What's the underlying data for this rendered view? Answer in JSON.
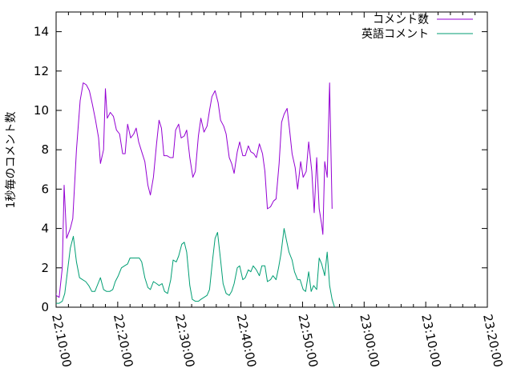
{
  "chart_data": {
    "type": "line",
    "title": "",
    "xlabel": "",
    "ylabel": "1秒毎のコメント数",
    "x_range_minutes": [
      0,
      70
    ],
    "x_ticks": [
      {
        "m": 0,
        "label": "22:10:00"
      },
      {
        "m": 10,
        "label": "22:20:00"
      },
      {
        "m": 20,
        "label": "22:30:00"
      },
      {
        "m": 30,
        "label": "22:40:00"
      },
      {
        "m": 40,
        "label": "22:50:00"
      },
      {
        "m": 50,
        "label": "23:00:00"
      },
      {
        "m": 60,
        "label": "23:10:00"
      },
      {
        "m": 70,
        "label": "23:20:00"
      }
    ],
    "ylim": [
      0,
      15
    ],
    "y_ticks": [
      0,
      2,
      4,
      6,
      8,
      10,
      12,
      14
    ],
    "grid": false,
    "legend_position": "top-right",
    "series": [
      {
        "name": "コメント数",
        "color": "#9400d3",
        "points": [
          [
            -1.0,
            2.0
          ],
          [
            -0.5,
            2.0
          ],
          [
            0.0,
            0.6
          ],
          [
            0.5,
            0.5
          ],
          [
            1.0,
            2.0
          ],
          [
            1.3,
            6.2
          ],
          [
            1.7,
            3.5
          ],
          [
            2.3,
            4.0
          ],
          [
            2.7,
            4.5
          ],
          [
            3.3,
            8.0
          ],
          [
            3.9,
            10.5
          ],
          [
            4.4,
            11.4
          ],
          [
            4.9,
            11.3
          ],
          [
            5.4,
            11.0
          ],
          [
            5.9,
            10.3
          ],
          [
            6.4,
            9.5
          ],
          [
            6.9,
            8.6
          ],
          [
            7.2,
            7.3
          ],
          [
            7.7,
            8.0
          ],
          [
            8.0,
            11.1
          ],
          [
            8.3,
            9.6
          ],
          [
            8.8,
            9.9
          ],
          [
            9.3,
            9.7
          ],
          [
            9.8,
            9.0
          ],
          [
            10.3,
            8.8
          ],
          [
            10.8,
            7.8
          ],
          [
            11.2,
            7.8
          ],
          [
            11.6,
            9.3
          ],
          [
            12.1,
            8.6
          ],
          [
            12.6,
            8.8
          ],
          [
            13.0,
            9.1
          ],
          [
            13.4,
            8.4
          ],
          [
            13.9,
            7.9
          ],
          [
            14.4,
            7.4
          ],
          [
            14.9,
            6.2
          ],
          [
            15.3,
            5.7
          ],
          [
            15.8,
            6.6
          ],
          [
            16.3,
            8.3
          ],
          [
            16.7,
            9.5
          ],
          [
            17.1,
            9.1
          ],
          [
            17.5,
            7.7
          ],
          [
            18.0,
            7.7
          ],
          [
            18.5,
            7.6
          ],
          [
            19.0,
            7.6
          ],
          [
            19.4,
            9.0
          ],
          [
            19.9,
            9.3
          ],
          [
            20.3,
            8.6
          ],
          [
            20.8,
            8.7
          ],
          [
            21.2,
            9.0
          ],
          [
            21.7,
            7.6
          ],
          [
            22.2,
            6.6
          ],
          [
            22.6,
            6.9
          ],
          [
            23.1,
            8.7
          ],
          [
            23.5,
            9.6
          ],
          [
            24.0,
            8.9
          ],
          [
            24.5,
            9.2
          ],
          [
            24.9,
            10.0
          ],
          [
            25.3,
            10.7
          ],
          [
            25.8,
            11.0
          ],
          [
            26.3,
            10.4
          ],
          [
            26.7,
            9.5
          ],
          [
            27.2,
            9.2
          ],
          [
            27.6,
            8.8
          ],
          [
            28.1,
            7.6
          ],
          [
            28.5,
            7.3
          ],
          [
            28.9,
            6.8
          ],
          [
            29.4,
            7.9
          ],
          [
            29.8,
            8.4
          ],
          [
            30.3,
            7.7
          ],
          [
            30.7,
            7.7
          ],
          [
            31.2,
            8.2
          ],
          [
            31.6,
            7.9
          ],
          [
            32.1,
            7.8
          ],
          [
            32.5,
            7.6
          ],
          [
            33.0,
            8.3
          ],
          [
            33.5,
            7.8
          ],
          [
            33.9,
            6.9
          ],
          [
            34.3,
            5.0
          ],
          [
            34.8,
            5.1
          ],
          [
            35.3,
            5.4
          ],
          [
            35.7,
            5.5
          ],
          [
            36.2,
            7.3
          ],
          [
            36.6,
            9.4
          ],
          [
            37.0,
            9.8
          ],
          [
            37.5,
            10.1
          ],
          [
            37.9,
            9.0
          ],
          [
            38.3,
            7.8
          ],
          [
            38.8,
            7.1
          ],
          [
            39.2,
            6.0
          ],
          [
            39.7,
            7.4
          ],
          [
            40.1,
            6.6
          ],
          [
            40.6,
            6.9
          ],
          [
            41.0,
            8.4
          ],
          [
            41.5,
            6.9
          ],
          [
            41.9,
            4.8
          ],
          [
            42.3,
            7.6
          ],
          [
            42.7,
            5.0
          ],
          [
            43.1,
            4.2
          ],
          [
            43.3,
            3.7
          ],
          [
            43.6,
            7.4
          ],
          [
            44.0,
            6.6
          ],
          [
            44.4,
            11.4
          ],
          [
            44.8,
            5.0
          ]
        ]
      },
      {
        "name": "英語コメント",
        "color": "#009e73",
        "points": [
          [
            -1.0,
            0.0
          ],
          [
            -0.5,
            0.0
          ],
          [
            0.0,
            0.2
          ],
          [
            0.5,
            0.2
          ],
          [
            1.0,
            0.3
          ],
          [
            1.4,
            0.7
          ],
          [
            1.8,
            1.7
          ],
          [
            2.3,
            3.0
          ],
          [
            2.8,
            3.6
          ],
          [
            3.3,
            2.3
          ],
          [
            3.8,
            1.5
          ],
          [
            4.3,
            1.4
          ],
          [
            4.8,
            1.3
          ],
          [
            5.3,
            1.1
          ],
          [
            5.8,
            0.8
          ],
          [
            6.3,
            0.8
          ],
          [
            6.8,
            1.2
          ],
          [
            7.2,
            1.5
          ],
          [
            7.7,
            0.9
          ],
          [
            8.2,
            0.8
          ],
          [
            8.7,
            0.8
          ],
          [
            9.2,
            0.9
          ],
          [
            9.6,
            1.3
          ],
          [
            10.1,
            1.6
          ],
          [
            10.6,
            2.0
          ],
          [
            11.1,
            2.1
          ],
          [
            11.6,
            2.2
          ],
          [
            12.0,
            2.5
          ],
          [
            12.5,
            2.5
          ],
          [
            13.0,
            2.5
          ],
          [
            13.5,
            2.5
          ],
          [
            13.9,
            2.3
          ],
          [
            14.4,
            1.5
          ],
          [
            14.9,
            1.0
          ],
          [
            15.3,
            0.9
          ],
          [
            15.8,
            1.3
          ],
          [
            16.3,
            1.2
          ],
          [
            16.7,
            1.1
          ],
          [
            17.2,
            1.2
          ],
          [
            17.6,
            0.8
          ],
          [
            18.1,
            0.7
          ],
          [
            18.6,
            1.4
          ],
          [
            19.0,
            2.4
          ],
          [
            19.5,
            2.3
          ],
          [
            19.9,
            2.6
          ],
          [
            20.4,
            3.2
          ],
          [
            20.8,
            3.3
          ],
          [
            21.2,
            2.8
          ],
          [
            21.7,
            1.1
          ],
          [
            22.1,
            0.4
          ],
          [
            22.6,
            0.3
          ],
          [
            23.1,
            0.3
          ],
          [
            23.5,
            0.4
          ],
          [
            24.0,
            0.5
          ],
          [
            24.5,
            0.6
          ],
          [
            24.9,
            0.9
          ],
          [
            25.4,
            2.4
          ],
          [
            25.8,
            3.5
          ],
          [
            26.2,
            3.8
          ],
          [
            26.7,
            2.4
          ],
          [
            27.1,
            1.2
          ],
          [
            27.6,
            0.7
          ],
          [
            28.1,
            0.6
          ],
          [
            28.5,
            0.8
          ],
          [
            28.9,
            1.2
          ],
          [
            29.4,
            2.0
          ],
          [
            29.8,
            2.1
          ],
          [
            30.3,
            1.4
          ],
          [
            30.7,
            1.5
          ],
          [
            31.2,
            1.9
          ],
          [
            31.6,
            1.8
          ],
          [
            32.0,
            2.1
          ],
          [
            32.5,
            1.9
          ],
          [
            33.0,
            1.6
          ],
          [
            33.4,
            2.1
          ],
          [
            33.9,
            2.1
          ],
          [
            34.3,
            1.3
          ],
          [
            34.8,
            1.4
          ],
          [
            35.2,
            1.6
          ],
          [
            35.7,
            1.4
          ],
          [
            36.1,
            2.0
          ],
          [
            36.5,
            2.7
          ],
          [
            37.0,
            4.0
          ],
          [
            37.4,
            3.4
          ],
          [
            37.8,
            2.8
          ],
          [
            38.3,
            2.4
          ],
          [
            38.7,
            1.8
          ],
          [
            39.2,
            1.4
          ],
          [
            39.6,
            1.4
          ],
          [
            40.1,
            0.9
          ],
          [
            40.5,
            0.8
          ],
          [
            41.0,
            1.8
          ],
          [
            41.4,
            0.8
          ],
          [
            41.8,
            1.1
          ],
          [
            42.3,
            0.9
          ],
          [
            42.7,
            2.5
          ],
          [
            43.1,
            2.2
          ],
          [
            43.6,
            1.6
          ],
          [
            44.0,
            2.8
          ],
          [
            44.4,
            1.1
          ],
          [
            44.8,
            0.4
          ],
          [
            45.2,
            0.0
          ]
        ]
      }
    ]
  }
}
